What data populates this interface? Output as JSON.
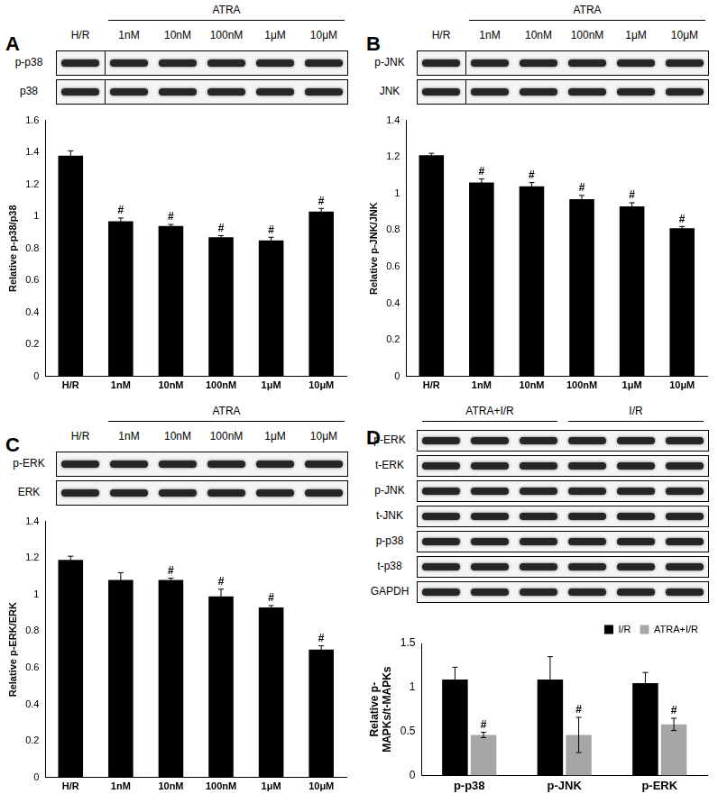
{
  "chart_data": [
    {
      "type": "bar",
      "panel_label": "A",
      "blot": {
        "group": "ATRA",
        "lanes": [
          "H/R",
          "1nM",
          "10nM",
          "100nM",
          "1μM",
          "10μM"
        ],
        "rows": [
          "p-p38",
          "p38"
        ]
      },
      "y_label": "Relative p-p38/p38",
      "categories": [
        "H/R",
        "1nM",
        "10nM",
        "100nM",
        "1μM",
        "10μM"
      ],
      "values": [
        1.38,
        0.97,
        0.94,
        0.87,
        0.85,
        1.03
      ],
      "errors": [
        0.03,
        0.02,
        0.01,
        0.01,
        0.02,
        0.02
      ],
      "annotations": [
        null,
        "#",
        "#",
        "#",
        "#",
        "#"
      ],
      "color": "#000000",
      "ylim": [
        0,
        1.6
      ],
      "yticks": [
        0,
        0.2,
        0.4,
        0.6,
        0.8,
        1,
        1.2,
        1.4,
        1.6
      ],
      "grid": false
    },
    {
      "type": "bar",
      "panel_label": "B",
      "blot": {
        "group": "ATRA",
        "lanes": [
          "H/R",
          "1nM",
          "10nM",
          "100nM",
          "1μM",
          "10μM"
        ],
        "rows": [
          "p-JNK",
          "JNK"
        ]
      },
      "y_label": "Relative p-JNK/JNK",
      "categories": [
        "H/R",
        "1nM",
        "10nM",
        "100nM",
        "1μM",
        "10μM"
      ],
      "values": [
        1.21,
        1.06,
        1.04,
        0.97,
        0.93,
        0.81
      ],
      "errors": [
        0.01,
        0.02,
        0.02,
        0.02,
        0.02,
        0.01
      ],
      "annotations": [
        null,
        "#",
        "#",
        "#",
        "#",
        "#"
      ],
      "color": "#000000",
      "ylim": [
        0,
        1.4
      ],
      "yticks": [
        0,
        0.2,
        0.4,
        0.6,
        0.8,
        1,
        1.2,
        1.4
      ],
      "grid": false
    },
    {
      "type": "bar",
      "panel_label": "C",
      "blot": {
        "group": "ATRA",
        "lanes": [
          "H/R",
          "1nM",
          "10nM",
          "100nM",
          "1μM",
          "10μM"
        ],
        "rows": [
          "p-ERK",
          "ERK"
        ]
      },
      "y_label": "Relative p-ERK/ERK",
      "categories": [
        "H/R",
        "1nM",
        "10nM",
        "100nM",
        "1μM",
        "10μM"
      ],
      "values": [
        1.19,
        1.08,
        1.08,
        0.99,
        0.93,
        0.7
      ],
      "errors": [
        0.02,
        0.04,
        0.01,
        0.04,
        0.01,
        0.02
      ],
      "annotations": [
        null,
        null,
        "#",
        "#",
        "#",
        "#"
      ],
      "color": "#000000",
      "ylim": [
        0,
        1.4
      ],
      "yticks": [
        0,
        0.2,
        0.4,
        0.6,
        0.8,
        1,
        1.2,
        1.4
      ],
      "grid": false
    },
    {
      "type": "bar",
      "panel_label": "D",
      "blot": {
        "groups": [
          "ATRA+I/R",
          "I/R"
        ],
        "rows": [
          "p-ERK",
          "t-ERK",
          "p-JNK",
          "t-JNK",
          "p-p38",
          "t-p38",
          "GAPDH"
        ]
      },
      "y_label": [
        "Relative p-",
        "MAPKs/t-MAPKs"
      ],
      "categories": [
        "p-p38",
        "p-JNK",
        "p-ERK"
      ],
      "series": [
        {
          "name": "I/R",
          "color": "#000000",
          "values": [
            1.09,
            1.09,
            1.05
          ],
          "errors": [
            0.14,
            0.26,
            0.12
          ]
        },
        {
          "name": "ATRA+I/R",
          "color": "#a6a6a6",
          "values": [
            0.46,
            0.46,
            0.58
          ],
          "errors": [
            0.03,
            0.2,
            0.07
          ],
          "annotations": [
            "#",
            "#",
            "#"
          ]
        }
      ],
      "ylim": [
        0,
        1.5
      ],
      "yticks": [
        0,
        0.5,
        1,
        1.5
      ],
      "grid": false,
      "legend": "top"
    }
  ]
}
